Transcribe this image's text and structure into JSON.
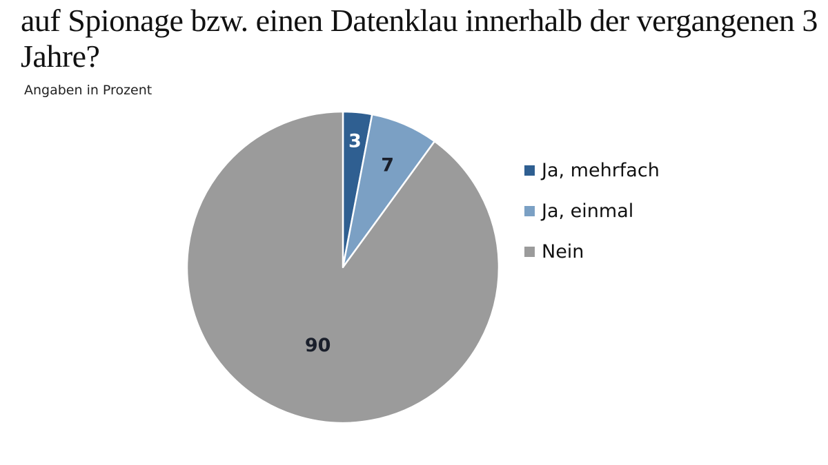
{
  "chart_data": {
    "type": "pie",
    "title": "auf Spionage bzw. einen Datenklau innerhalb der vergangenen 3 Jahre?",
    "subtitle": "Angaben in Prozent",
    "legend_position": "right",
    "slices": [
      {
        "label": "Ja, mehrfach",
        "value": 3,
        "color": "#2f5f91",
        "label_color": "#ffffff"
      },
      {
        "label": "Ja, einmal",
        "value": 7,
        "color": "#7ba0c4",
        "label_color": "#1a1f2b"
      },
      {
        "label": "Nein",
        "value": 90,
        "color": "#9b9b9b",
        "label_color": "#1a1f2b"
      }
    ]
  }
}
